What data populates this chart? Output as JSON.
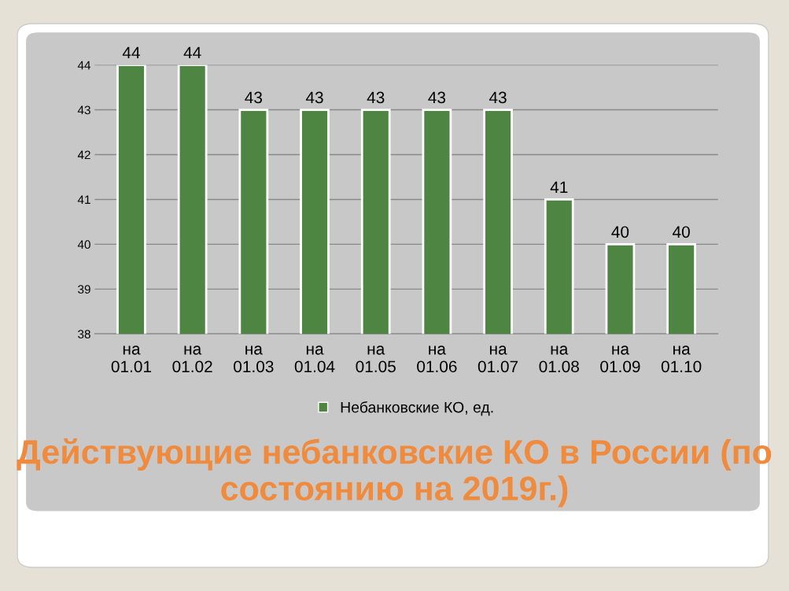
{
  "chart_data": {
    "type": "bar",
    "title": "Действующие небанковские КО в России (по состоянию на 2019г.)",
    "categories": [
      "на\n01.01",
      "на\n01.02",
      "на\n01.03",
      "на\n01.04",
      "на\n01.05",
      "на\n01.06",
      "на\n01.07",
      "на\n01.08",
      "на\n01.09",
      "на\n01.10"
    ],
    "series": [
      {
        "name": "Небанковские КО, ед.",
        "color": "#4e8542",
        "values": [
          44,
          44,
          43,
          43,
          43,
          43,
          43,
          41,
          40,
          40
        ]
      }
    ],
    "ylim": [
      38,
      44
    ],
    "yticks": [
      38,
      39,
      40,
      41,
      42,
      43,
      44
    ],
    "grid": "y",
    "legend": "bottom",
    "data_labels": true
  }
}
